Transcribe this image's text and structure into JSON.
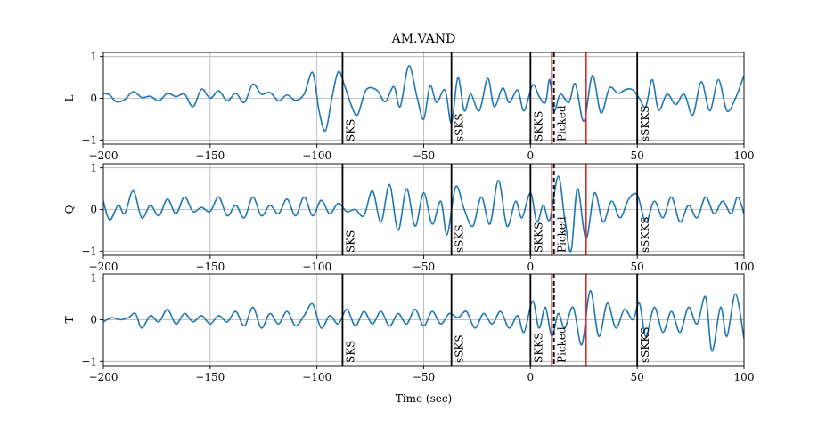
{
  "chart_data": {
    "type": "line",
    "title": "AM.VAND",
    "xlabel": "Time (sec)",
    "xlim": [
      -200,
      100
    ],
    "xticks": [
      -200,
      -150,
      -100,
      -50,
      0,
      50,
      100
    ],
    "ylim": [
      -1.1,
      1.1
    ],
    "yticks": [
      -1,
      0,
      1
    ],
    "grid": true,
    "line_color": "#1f77b4",
    "panels": [
      {
        "ylabel": "L",
        "points": [
          [
            -200,
            0.12
          ],
          [
            -197,
            0.08
          ],
          [
            -194,
            -0.08
          ],
          [
            -190,
            -0.03
          ],
          [
            -186,
            0.16
          ],
          [
            -182,
            0.02
          ],
          [
            -178,
            0.05
          ],
          [
            -174,
            -0.06
          ],
          [
            -170,
            0.12
          ],
          [
            -166,
            0.04
          ],
          [
            -162,
            0.1
          ],
          [
            -158,
            -0.2
          ],
          [
            -154,
            0.22
          ],
          [
            -150,
            0.0
          ],
          [
            -146,
            0.18
          ],
          [
            -142,
            -0.06
          ],
          [
            -138,
            0.12
          ],
          [
            -134,
            -0.1
          ],
          [
            -130,
            0.34
          ],
          [
            -126,
            0.1
          ],
          [
            -122,
            0.14
          ],
          [
            -118,
            -0.06
          ],
          [
            -114,
            0.08
          ],
          [
            -110,
            -0.05
          ],
          [
            -106,
            0.1
          ],
          [
            -102,
            0.62
          ],
          [
            -99,
            -0.3
          ],
          [
            -96,
            -0.78
          ],
          [
            -93,
            0.0
          ],
          [
            -90,
            0.64
          ],
          [
            -87,
            0.3
          ],
          [
            -84,
            -0.15
          ],
          [
            -81,
            -0.4
          ],
          [
            -77,
            0.2
          ],
          [
            -72,
            0.2
          ],
          [
            -68,
            -0.08
          ],
          [
            -64,
            0.28
          ],
          [
            -61,
            -0.2
          ],
          [
            -57,
            0.78
          ],
          [
            -53,
            0.0
          ],
          [
            -50,
            -0.5
          ],
          [
            -47,
            0.3
          ],
          [
            -44,
            -0.1
          ],
          [
            -40,
            0.2
          ],
          [
            -37,
            -0.6
          ],
          [
            -34,
            0.5
          ],
          [
            -31,
            -0.3
          ],
          [
            -28,
            0.1
          ],
          [
            -24,
            -0.3
          ],
          [
            -20,
            0.48
          ],
          [
            -17,
            -0.2
          ],
          [
            -13,
            0.25
          ],
          [
            -10,
            -0.1
          ],
          [
            -6,
            0.2
          ],
          [
            -3,
            -0.3
          ],
          [
            1,
            0.32
          ],
          [
            4,
            0.05
          ],
          [
            7,
            -0.1
          ],
          [
            9,
            0.45
          ],
          [
            11,
            -0.3
          ],
          [
            14,
            0.1
          ],
          [
            18,
            -0.1
          ],
          [
            21,
            0.35
          ],
          [
            25,
            -0.55
          ],
          [
            29,
            0.55
          ],
          [
            33,
            -0.35
          ],
          [
            37,
            0.25
          ],
          [
            41,
            0.12
          ],
          [
            45,
            0.22
          ],
          [
            48,
            0.2
          ],
          [
            51,
            0.0
          ],
          [
            54,
            -0.2
          ],
          [
            57,
            0.45
          ],
          [
            60,
            -0.28
          ],
          [
            64,
            0.1
          ],
          [
            68,
            -0.15
          ],
          [
            72,
            0.1
          ],
          [
            76,
            -0.4
          ],
          [
            80,
            0.4
          ],
          [
            84,
            -0.3
          ],
          [
            88,
            0.45
          ],
          [
            92,
            -0.3
          ],
          [
            96,
            0.0
          ],
          [
            100,
            0.55
          ]
        ],
        "phases": [
          {
            "label": "SKS",
            "x": -88,
            "color": "#000000",
            "style": "solid"
          },
          {
            "label": "sSKS",
            "x": -37,
            "color": "#000000",
            "style": "solid"
          },
          {
            "label": "SKKS",
            "x": 0,
            "color": "#000000",
            "style": "solid"
          },
          {
            "label": "Picked",
            "x": 11,
            "color": "#000000",
            "style": "dashed"
          },
          {
            "label": "",
            "x": 10,
            "color": "#d62728",
            "style": "solid"
          },
          {
            "label": "",
            "x": 26,
            "color": "#d62728",
            "style": "solid"
          },
          {
            "label": "sSKKS",
            "x": 50,
            "color": "#000000",
            "style": "solid"
          }
        ]
      },
      {
        "ylabel": "Q",
        "points": [
          [
            -200,
            0.2
          ],
          [
            -197,
            -0.25
          ],
          [
            -193,
            0.1
          ],
          [
            -190,
            -0.1
          ],
          [
            -186,
            0.45
          ],
          [
            -182,
            -0.2
          ],
          [
            -178,
            0.1
          ],
          [
            -174,
            -0.15
          ],
          [
            -170,
            0.25
          ],
          [
            -166,
            -0.1
          ],
          [
            -162,
            0.3
          ],
          [
            -158,
            -0.05
          ],
          [
            -154,
            0.05
          ],
          [
            -150,
            -0.05
          ],
          [
            -146,
            0.3
          ],
          [
            -142,
            -0.15
          ],
          [
            -138,
            0.1
          ],
          [
            -134,
            -0.2
          ],
          [
            -130,
            0.3
          ],
          [
            -126,
            -0.15
          ],
          [
            -122,
            0.1
          ],
          [
            -118,
            -0.1
          ],
          [
            -114,
            0.25
          ],
          [
            -110,
            -0.15
          ],
          [
            -106,
            0.3
          ],
          [
            -102,
            -0.15
          ],
          [
            -98,
            0.22
          ],
          [
            -94,
            -0.1
          ],
          [
            -90,
            0.15
          ],
          [
            -86,
            -0.05
          ],
          [
            -82,
            0.0
          ],
          [
            -78,
            -0.15
          ],
          [
            -74,
            0.45
          ],
          [
            -70,
            -0.3
          ],
          [
            -66,
            0.6
          ],
          [
            -62,
            -0.5
          ],
          [
            -58,
            0.5
          ],
          [
            -54,
            -0.4
          ],
          [
            -50,
            0.4
          ],
          [
            -46,
            -0.35
          ],
          [
            -42,
            0.2
          ],
          [
            -39,
            -0.6
          ],
          [
            -35,
            0.55
          ],
          [
            -31,
            0.0
          ],
          [
            -27,
            -0.4
          ],
          [
            -23,
            0.3
          ],
          [
            -19,
            -0.35
          ],
          [
            -15,
            0.7
          ],
          [
            -11,
            -0.4
          ],
          [
            -7,
            0.2
          ],
          [
            -4,
            -0.2
          ],
          [
            0,
            0.4
          ],
          [
            3,
            -0.3
          ],
          [
            6,
            0.1
          ],
          [
            9,
            -0.25
          ],
          [
            13,
            0.8
          ],
          [
            16,
            -0.2
          ],
          [
            19,
            -1.0
          ],
          [
            22,
            0.5
          ],
          [
            26,
            -0.7
          ],
          [
            30,
            0.4
          ],
          [
            34,
            -0.3
          ],
          [
            38,
            0.2
          ],
          [
            42,
            -0.2
          ],
          [
            46,
            0.25
          ],
          [
            50,
            0.35
          ],
          [
            54,
            -0.3
          ],
          [
            58,
            0.2
          ],
          [
            62,
            -0.2
          ],
          [
            66,
            0.3
          ],
          [
            70,
            -0.3
          ],
          [
            74,
            0.1
          ],
          [
            78,
            -0.2
          ],
          [
            82,
            0.3
          ],
          [
            86,
            -0.1
          ],
          [
            90,
            0.2
          ],
          [
            94,
            -0.1
          ],
          [
            97,
            0.3
          ],
          [
            100,
            -0.1
          ]
        ],
        "phases": [
          {
            "label": "SKS",
            "x": -88,
            "color": "#000000",
            "style": "solid"
          },
          {
            "label": "sSKS",
            "x": -37,
            "color": "#000000",
            "style": "solid"
          },
          {
            "label": "SKKS",
            "x": 0,
            "color": "#000000",
            "style": "solid"
          },
          {
            "label": "Picked",
            "x": 11,
            "color": "#000000",
            "style": "dashed"
          },
          {
            "label": "",
            "x": 10,
            "color": "#d62728",
            "style": "solid"
          },
          {
            "label": "",
            "x": 26,
            "color": "#d62728",
            "style": "solid"
          },
          {
            "label": "sSKKS",
            "x": 50,
            "color": "#000000",
            "style": "solid"
          }
        ]
      },
      {
        "ylabel": "T",
        "points": [
          [
            -200,
            -0.05
          ],
          [
            -196,
            0.05
          ],
          [
            -192,
            0.0
          ],
          [
            -188,
            0.06
          ],
          [
            -185,
            0.15
          ],
          [
            -182,
            -0.2
          ],
          [
            -178,
            0.1
          ],
          [
            -174,
            -0.05
          ],
          [
            -170,
            0.25
          ],
          [
            -166,
            -0.1
          ],
          [
            -162,
            0.15
          ],
          [
            -158,
            -0.05
          ],
          [
            -154,
            0.1
          ],
          [
            -150,
            -0.1
          ],
          [
            -146,
            0.1
          ],
          [
            -142,
            -0.05
          ],
          [
            -138,
            0.2
          ],
          [
            -134,
            -0.15
          ],
          [
            -130,
            0.3
          ],
          [
            -126,
            -0.2
          ],
          [
            -122,
            0.15
          ],
          [
            -118,
            -0.1
          ],
          [
            -114,
            0.2
          ],
          [
            -110,
            -0.15
          ],
          [
            -106,
            0.1
          ],
          [
            -102,
            0.38
          ],
          [
            -98,
            -0.2
          ],
          [
            -94,
            0.1
          ],
          [
            -90,
            -0.1
          ],
          [
            -86,
            0.25
          ],
          [
            -82,
            -0.15
          ],
          [
            -78,
            0.2
          ],
          [
            -74,
            -0.1
          ],
          [
            -70,
            0.2
          ],
          [
            -66,
            -0.15
          ],
          [
            -62,
            0.15
          ],
          [
            -58,
            -0.1
          ],
          [
            -54,
            0.25
          ],
          [
            -50,
            -0.15
          ],
          [
            -46,
            0.2
          ],
          [
            -42,
            -0.1
          ],
          [
            -38,
            0.15
          ],
          [
            -34,
            0.05
          ],
          [
            -30,
            0.2
          ],
          [
            -26,
            -0.2
          ],
          [
            -22,
            0.15
          ],
          [
            -18,
            -0.1
          ],
          [
            -14,
            0.2
          ],
          [
            -10,
            -0.2
          ],
          [
            -6,
            0.1
          ],
          [
            -3,
            -0.3
          ],
          [
            1,
            0.45
          ],
          [
            4,
            -0.2
          ],
          [
            7,
            0.3
          ],
          [
            10,
            -0.4
          ],
          [
            13,
            0.15
          ],
          [
            16,
            -0.2
          ],
          [
            20,
            0.3
          ],
          [
            24,
            -0.6
          ],
          [
            28,
            0.7
          ],
          [
            32,
            -0.4
          ],
          [
            36,
            0.4
          ],
          [
            40,
            -0.2
          ],
          [
            44,
            0.25
          ],
          [
            48,
            0.0
          ],
          [
            51,
            0.4
          ],
          [
            54,
            -0.4
          ],
          [
            58,
            0.3
          ],
          [
            62,
            -0.3
          ],
          [
            66,
            0.2
          ],
          [
            70,
            -0.3
          ],
          [
            74,
            0.3
          ],
          [
            78,
            -0.1
          ],
          [
            82,
            0.55
          ],
          [
            85,
            -0.75
          ],
          [
            89,
            0.3
          ],
          [
            92,
            -0.4
          ],
          [
            96,
            0.62
          ],
          [
            100,
            -0.45
          ]
        ],
        "phases": [
          {
            "label": "SKS",
            "x": -88,
            "color": "#000000",
            "style": "solid"
          },
          {
            "label": "sSKS",
            "x": -37,
            "color": "#000000",
            "style": "solid"
          },
          {
            "label": "SKKS",
            "x": 0,
            "color": "#000000",
            "style": "solid"
          },
          {
            "label": "Picked",
            "x": 11,
            "color": "#000000",
            "style": "dashed"
          },
          {
            "label": "",
            "x": 10,
            "color": "#d62728",
            "style": "solid"
          },
          {
            "label": "",
            "x": 26,
            "color": "#d62728",
            "style": "solid"
          },
          {
            "label": "sSKKS",
            "x": 50,
            "color": "#000000",
            "style": "solid"
          }
        ]
      }
    ]
  }
}
